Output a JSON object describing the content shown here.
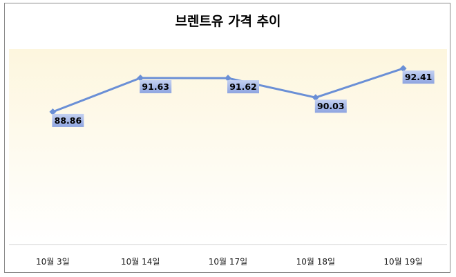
{
  "chart_data": {
    "type": "line",
    "title": "브렌트유 가격 추이",
    "categories": [
      "10월 3일",
      "10월 14일",
      "10월 17일",
      "10월 18일",
      "10월 19일"
    ],
    "series": [
      {
        "values": [
          88.86,
          91.63,
          91.62,
          90.03,
          92.41
        ]
      }
    ],
    "data_labels": [
      "88.86",
      "91.63",
      "91.62",
      "90.03",
      "92.41"
    ],
    "xlabel": "",
    "ylabel": "",
    "ylim": [
      78,
      94
    ],
    "grid": false,
    "legend": "none",
    "colors": {
      "line": "#6a8fd6",
      "label_bg_top": "#c3d0f1",
      "label_bg_bottom": "#8ea4e0",
      "plot_bg_top": "#fdf6de",
      "plot_bg_bottom": "#ffffff"
    }
  }
}
